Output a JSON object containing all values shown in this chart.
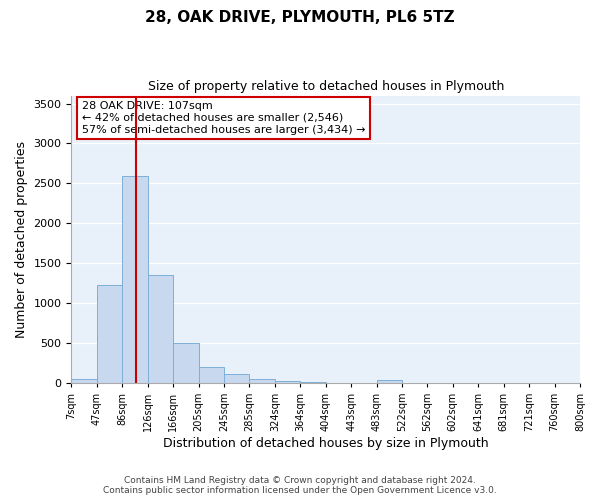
{
  "title": "28, OAK DRIVE, PLYMOUTH, PL6 5TZ",
  "subtitle": "Size of property relative to detached houses in Plymouth",
  "xlabel": "Distribution of detached houses by size in Plymouth",
  "ylabel": "Number of detached properties",
  "bar_color": "#c8d8ef",
  "bar_edgecolor": "#7dafd8",
  "bg_color": "#e8f0fa",
  "grid_color": "#ffffff",
  "annotation_box_edgecolor": "#cc0000",
  "vline_color": "#cc0000",
  "footer_line1": "Contains HM Land Registry data © Crown copyright and database right 2024.",
  "footer_line2": "Contains public sector information licensed under the Open Government Licence v3.0.",
  "annotation_title": "28 OAK DRIVE: 107sqm",
  "annotation_line2": "← 42% of detached houses are smaller (2,546)",
  "annotation_line3": "57% of semi-detached houses are larger (3,434) →",
  "bin_labels": [
    "7sqm",
    "47sqm",
    "86sqm",
    "126sqm",
    "166sqm",
    "205sqm",
    "245sqm",
    "285sqm",
    "324sqm",
    "364sqm",
    "404sqm",
    "443sqm",
    "483sqm",
    "522sqm",
    "562sqm",
    "602sqm",
    "641sqm",
    "681sqm",
    "721sqm",
    "760sqm",
    "800sqm"
  ],
  "bar_values": [
    50,
    1230,
    2590,
    1350,
    500,
    200,
    110,
    50,
    30,
    10,
    5,
    5,
    40,
    0,
    0,
    0,
    0,
    0,
    0,
    0
  ],
  "ylim": [
    0,
    3600
  ],
  "yticks": [
    0,
    500,
    1000,
    1500,
    2000,
    2500,
    3000,
    3500
  ]
}
